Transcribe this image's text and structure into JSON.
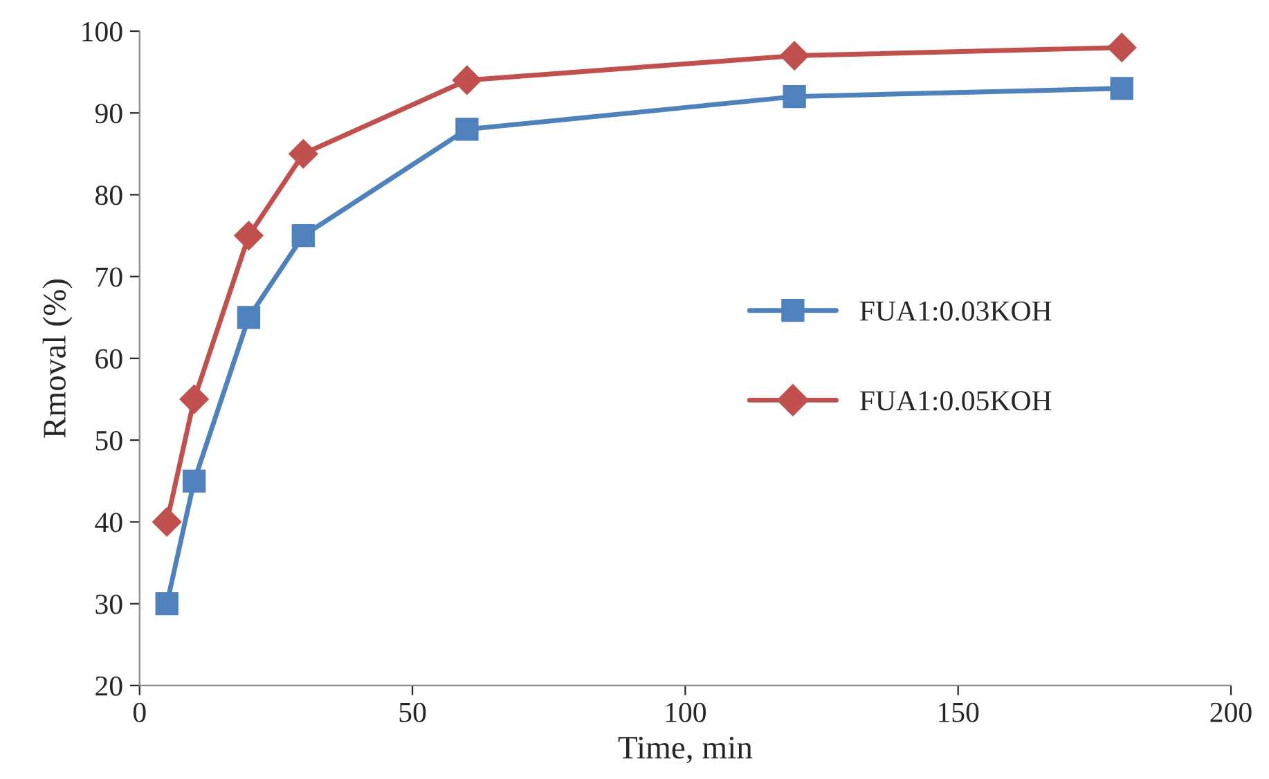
{
  "chart_data": {
    "type": "line",
    "xlabel": "Time, min",
    "ylabel": "Rmoval (%)",
    "x": [
      5,
      10,
      20,
      30,
      60,
      120,
      180
    ],
    "series": [
      {
        "name": "FUA1:0.03KOH",
        "color": "#4f81bd",
        "marker": "square",
        "values": [
          30,
          45,
          65,
          75,
          88,
          92,
          93
        ]
      },
      {
        "name": "FUA1:0.05KOH",
        "color": "#c0504d",
        "marker": "diamond",
        "values": [
          40,
          55,
          75,
          85,
          94,
          97,
          98
        ]
      }
    ],
    "xlim": [
      0,
      200
    ],
    "xticks": [
      0,
      50,
      100,
      150,
      200
    ],
    "ylim": [
      20,
      100
    ],
    "yticks": [
      20,
      30,
      40,
      50,
      60,
      70,
      80,
      90,
      100
    ],
    "grid": false,
    "legend": "right",
    "line_style": "solid"
  }
}
